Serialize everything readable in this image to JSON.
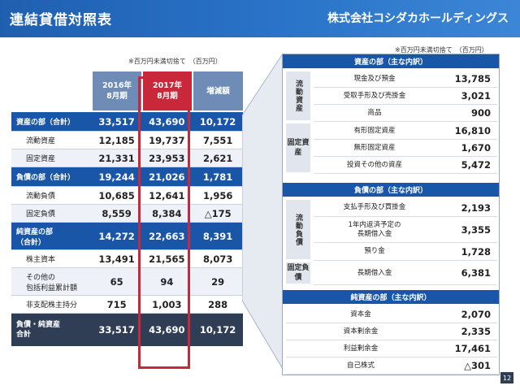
{
  "header": {
    "title": "連結貸借対照表",
    "company": "株式会社コシダカホールディングス"
  },
  "left": {
    "note": "※百万円未満切捨て　（百万円）",
    "columns": [
      {
        "line1": "2016年",
        "line2": "8月期"
      },
      {
        "line1": "2017年",
        "line2": "8月期"
      },
      {
        "line1": "増減額",
        "line2": ""
      }
    ],
    "rows": [
      {
        "label": "資産の部（合計）",
        "line2": "",
        "v2016": "33,517",
        "v2017": "43,690",
        "diff": "10,172",
        "kind": "total"
      },
      {
        "label": "流動資産",
        "line2": "",
        "v2016": "12,185",
        "v2017": "19,737",
        "diff": "7,551",
        "kind": "sub"
      },
      {
        "label": "固定資産",
        "line2": "",
        "v2016": "21,331",
        "v2017": "23,953",
        "diff": "2,621",
        "kind": "sub"
      },
      {
        "label": "負債の部（合計）",
        "line2": "",
        "v2016": "19,244",
        "v2017": "21,026",
        "diff": "1,781",
        "kind": "total"
      },
      {
        "label": "流動負債",
        "line2": "",
        "v2016": "10,685",
        "v2017": "12,641",
        "diff": "1,956",
        "kind": "sub"
      },
      {
        "label": "固定負債",
        "line2": "",
        "v2016": "8,559",
        "v2017": "8,384",
        "diff": "△175",
        "kind": "sub"
      },
      {
        "label": "純資産の部",
        "line2": "（合計）",
        "v2016": "14,272",
        "v2017": "22,663",
        "diff": "8,391",
        "kind": "total"
      },
      {
        "label": "株主資本",
        "line2": "",
        "v2016": "13,491",
        "v2017": "21,565",
        "diff": "8,073",
        "kind": "sub"
      },
      {
        "label": "その他の",
        "line2": "包括利益累計額",
        "v2016": "65",
        "v2017": "94",
        "diff": "29",
        "kind": "sub"
      },
      {
        "label": "非支配株主持分",
        "line2": "",
        "v2016": "715",
        "v2017": "1,003",
        "diff": "288",
        "kind": "sub"
      },
      {
        "label": "負債・純資産",
        "line2": "合計",
        "v2016": "33,517",
        "v2017": "43,690",
        "diff": "10,172",
        "kind": "grand"
      }
    ]
  },
  "right": {
    "note": "※百万円未満切捨て　（百万円）",
    "assets": {
      "title": "資産の部（主な内訳）",
      "groups": [
        {
          "label": "流動資産",
          "items": [
            {
              "label": "現金及び預金",
              "value": "13,785"
            },
            {
              "label": "受取手形及び売掛金",
              "value": "3,021"
            },
            {
              "label": "商品",
              "value": "900"
            }
          ]
        },
        {
          "label": "固定資産",
          "items": [
            {
              "label": "有形固定資産",
              "value": "16,810"
            },
            {
              "label": "無形固定資産",
              "value": "1,670"
            },
            {
              "label": "投資その他の資産",
              "value": "5,472"
            }
          ]
        }
      ]
    },
    "liabilities": {
      "title": "負債の部（主な内訳）",
      "groups": [
        {
          "label": "流動負債",
          "items": [
            {
              "label": "支払手形及び買掛金",
              "line2": "",
              "value": "2,193"
            },
            {
              "label": "1年内返済予定の",
              "line2": "長期借入金",
              "value": "3,355"
            },
            {
              "label": "預り金",
              "line2": "",
              "value": "1,728"
            }
          ]
        },
        {
          "label": "固定負債",
          "items": [
            {
              "label": "長期借入金",
              "line2": "",
              "value": "6,381"
            }
          ]
        }
      ]
    },
    "equity": {
      "title": "純資産の部（主な内訳）",
      "items": [
        {
          "label": "資本金",
          "value": "2,070"
        },
        {
          "label": "資本剰余金",
          "value": "2,335"
        },
        {
          "label": "利益剰余金",
          "value": "17,461"
        },
        {
          "label": "自己株式",
          "value": "△301"
        }
      ]
    }
  },
  "colors": {
    "header": "#1f5fb0",
    "total_row": "#1a56a8",
    "highlight": "#c8283a",
    "grand_row": "#2f3e55",
    "column_head": "#6f8cb6"
  },
  "page_number": "12"
}
